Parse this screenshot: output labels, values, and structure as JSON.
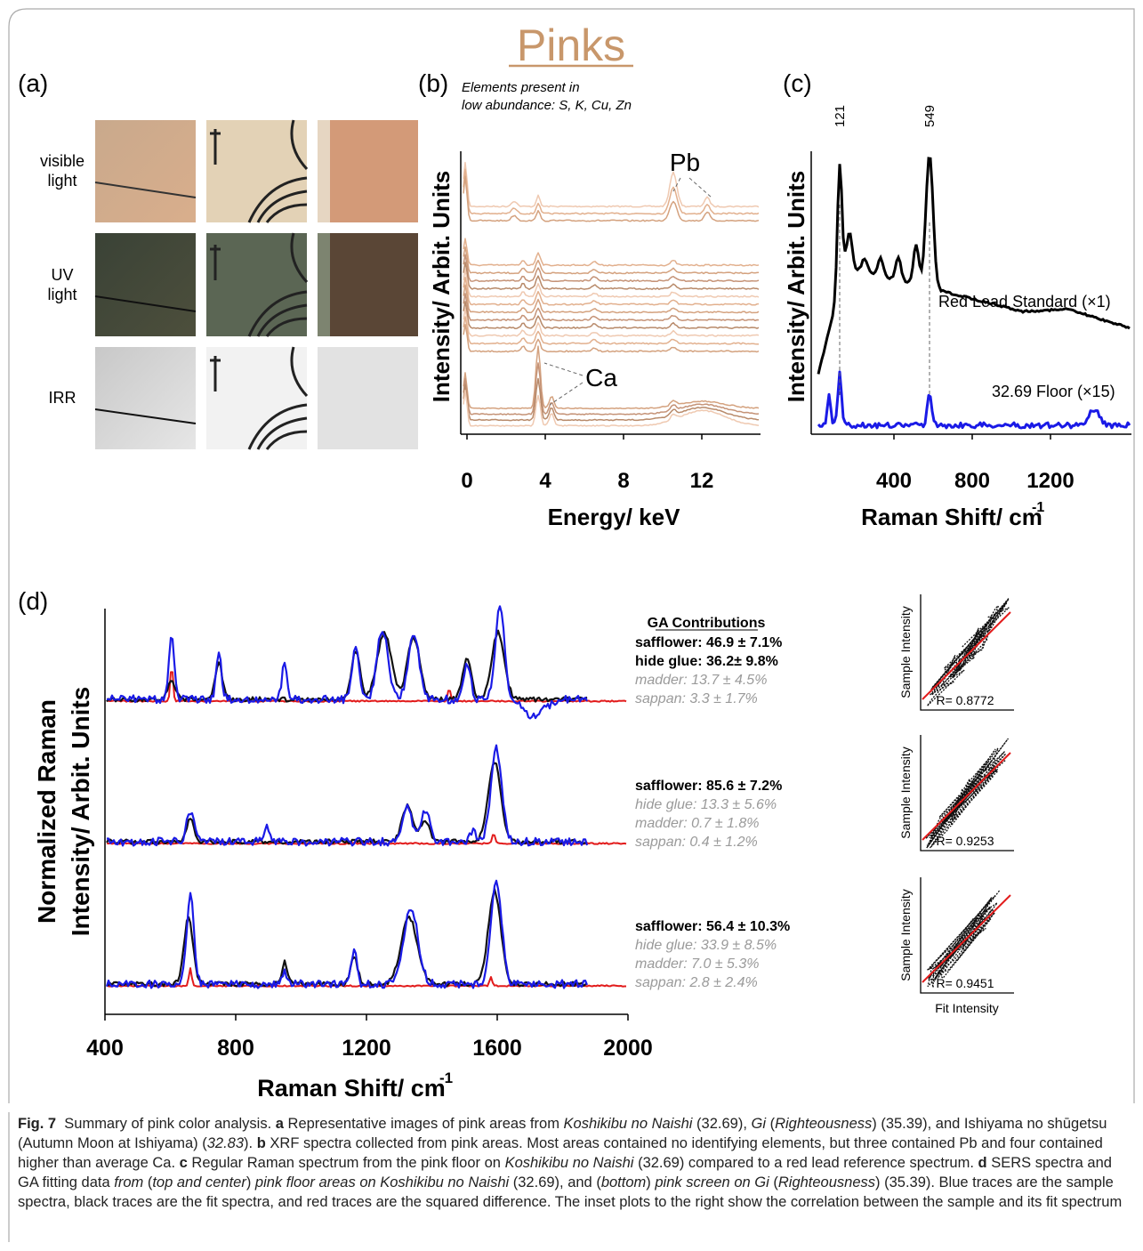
{
  "title": "Pinks",
  "panels": {
    "a": {
      "label": "(a)",
      "rows": [
        [
          "visible",
          "light"
        ],
        [
          "UV",
          "light"
        ],
        [
          "IRR"
        ]
      ]
    },
    "b": {
      "label": "(b)",
      "note": [
        "Elements present in",
        "low abundance: S, K, Cu, Zn"
      ],
      "x_label": "Energy/ keV",
      "y_label": "Intensity/ Arbit. Units",
      "xlim": [
        0,
        15
      ],
      "xticks": [
        0,
        4,
        8,
        12
      ],
      "annotations": [
        "Pb",
        "Ca"
      ]
    },
    "c": {
      "label": "(c)",
      "x_label": "Raman Shift/ cm",
      "x_label_superscript": "-1",
      "y_label": "Intensity/ Arbit. Units",
      "xlim": [
        0,
        1600
      ],
      "xticks": [
        400,
        800,
        1200
      ],
      "peak_labels": [
        "121",
        "549"
      ],
      "traces": [
        "Red Lead Standard (×1)",
        "32.69 Floor (×15)"
      ]
    },
    "d": {
      "label": "(d)",
      "y_label": [
        "Normalized Raman",
        "Intensity/ Arbit. Units"
      ],
      "x_label": "Raman Shift/ cm",
      "x_label_superscript": "-1",
      "xlim": [
        400,
        2000
      ],
      "xticks": [
        400,
        800,
        1200,
        1600,
        2000
      ],
      "ga_title": "GA Contributions",
      "fits": [
        {
          "lines": [
            "safflower: 46.9 ± 7.1%",
            "hide glue: 36.2± 9.8%",
            "madder: 13.7 ± 4.5%",
            "sappan: 3.3 ± 1.7%"
          ],
          "strong": [
            true,
            true,
            false,
            false
          ]
        },
        {
          "lines": [
            "safflower: 85.6 ± 7.2%",
            "hide glue: 13.3 ± 5.6%",
            "madder: 0.7 ± 1.8%",
            "sappan: 0.4 ± 1.2%"
          ],
          "strong": [
            true,
            false,
            false,
            false
          ]
        },
        {
          "lines": [
            "safflower: 56.4 ± 10.3%",
            "hide glue: 33.9 ± 8.5%",
            "madder: 7.0 ± 5.3%",
            "sappan: 2.8 ± 2.4%"
          ],
          "strong": [
            true,
            false,
            false,
            false
          ]
        }
      ],
      "inset_y_label": "Sample Intensity",
      "inset_x_label": "Fit Intensity",
      "inset_r": [
        "R= 0.8772",
        "R= 0.9253",
        "R= 0.9451"
      ]
    }
  },
  "caption": [
    {
      "text": "Fig. 7",
      "style": "b"
    },
    {
      "text": "  Summary of pink color analysis. ",
      "style": "n"
    },
    {
      "text": "a",
      "style": "b"
    },
    {
      "text": " Representative images of pink areas from ",
      "style": "n"
    },
    {
      "text": "Koshikibu no Naishi",
      "style": "i"
    },
    {
      "text": " (32.69), ",
      "style": "n"
    },
    {
      "text": "Gi",
      "style": "i"
    },
    {
      "text": " (",
      "style": "n"
    },
    {
      "text": "Righteousness",
      "style": "i"
    },
    {
      "text": ") (35.39), and Ishiyama no shūgetsu (Autumn Moon at Ishiyama) (",
      "style": "n"
    },
    {
      "text": "32.83",
      "style": "i"
    },
    {
      "text": "). ",
      "style": "n"
    },
    {
      "text": "b",
      "style": "b"
    },
    {
      "text": " XRF spectra collected from pink areas. Most areas contained no identifying elements, but three contained Pb and four contained higher than average Ca. ",
      "style": "n"
    },
    {
      "text": "c",
      "style": "b"
    },
    {
      "text": " Regular Raman spectrum from the pink floor on ",
      "style": "n"
    },
    {
      "text": "Koshikibu no Naishi",
      "style": "i"
    },
    {
      "text": " (32.69) compared to a red lead reference spectrum. ",
      "style": "n"
    },
    {
      "text": "d",
      "style": "b"
    },
    {
      "text": " SERS spectra and GA fitting data ",
      "style": "n"
    },
    {
      "text": "from",
      "style": "i"
    },
    {
      "text": " (",
      "style": "n"
    },
    {
      "text": "top and center",
      "style": "i"
    },
    {
      "text": ") ",
      "style": "n"
    },
    {
      "text": "pink floor areas on Koshikibu no Naishi",
      "style": "i"
    },
    {
      "text": " (32.69), and (",
      "style": "n"
    },
    {
      "text": "bottom",
      "style": "i"
    },
    {
      "text": ") ",
      "style": "n"
    },
    {
      "text": "pink screen on Gi",
      "style": "i"
    },
    {
      "text": " (",
      "style": "n"
    },
    {
      "text": "Righteousness",
      "style": "i"
    },
    {
      "text": ") (35.39). Blue traces are the sample spectra, black traces are the fit spectra, and red traces are the squared difference. The inset plots to the right show the correlation between the sample and its fit spectrum",
      "style": "n"
    }
  ]
}
